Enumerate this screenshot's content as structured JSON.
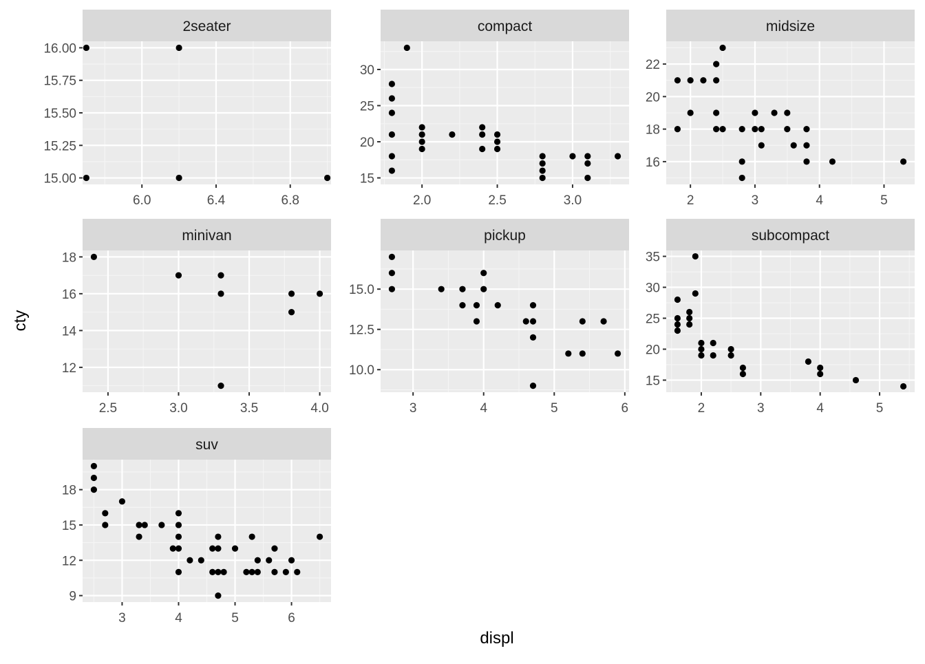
{
  "chart_data": {
    "type": "scatter",
    "facet_by": "class",
    "xlabel": "displ",
    "ylabel": "cty",
    "scales": "free",
    "grid": true,
    "colors": {
      "panel_bg": "#EBEBEB",
      "strip_bg": "#D9D9D9",
      "grid_major": "#FFFFFF",
      "grid_minor": "#F5F5F5",
      "point": "#000000",
      "tick_text": "#4D4D4D",
      "strip_text": "#1A1A1A"
    },
    "panels": [
      {
        "title": "2seater",
        "xlim": [
          5.68,
          7.02
        ],
        "ylim": [
          14.95,
          16.05
        ],
        "xticks": [
          6.0,
          6.4,
          6.8
        ],
        "xtick_labels": [
          "6.0",
          "6.4",
          "6.8"
        ],
        "yticks": [
          15.0,
          15.25,
          15.5,
          15.75,
          16.0
        ],
        "ytick_labels": [
          "15.00",
          "15.25",
          "15.50",
          "15.75",
          "16.00"
        ],
        "points": [
          [
            5.7,
            16
          ],
          [
            5.7,
            15
          ],
          [
            6.2,
            16
          ],
          [
            6.2,
            15
          ],
          [
            7.0,
            15
          ]
        ]
      },
      {
        "title": "compact",
        "xlim": [
          1.725,
          3.375
        ],
        "ylim": [
          14.1,
          33.9
        ],
        "xticks": [
          2.0,
          2.5,
          3.0
        ],
        "xtick_labels": [
          "2.0",
          "2.5",
          "3.0"
        ],
        "yticks": [
          15,
          20,
          25,
          30
        ],
        "ytick_labels": [
          "15",
          "20",
          "25",
          "30"
        ],
        "points": [
          [
            1.8,
            16
          ],
          [
            1.8,
            18
          ],
          [
            1.8,
            21
          ],
          [
            1.8,
            24
          ],
          [
            1.8,
            26
          ],
          [
            1.8,
            28
          ],
          [
            1.9,
            33
          ],
          [
            2.0,
            19
          ],
          [
            2.0,
            20
          ],
          [
            2.0,
            21
          ],
          [
            2.0,
            22
          ],
          [
            2.2,
            21
          ],
          [
            2.4,
            19
          ],
          [
            2.4,
            21
          ],
          [
            2.4,
            22
          ],
          [
            2.5,
            19
          ],
          [
            2.5,
            20
          ],
          [
            2.5,
            21
          ],
          [
            2.8,
            15
          ],
          [
            2.8,
            16
          ],
          [
            2.8,
            17
          ],
          [
            2.8,
            18
          ],
          [
            3.0,
            18
          ],
          [
            3.1,
            15
          ],
          [
            3.1,
            17
          ],
          [
            3.1,
            18
          ],
          [
            3.3,
            18
          ]
        ]
      },
      {
        "title": "midsize",
        "xlim": [
          1.625,
          5.475
        ],
        "ylim": [
          14.6,
          23.4
        ],
        "xticks": [
          2,
          3,
          4,
          5
        ],
        "xtick_labels": [
          "2",
          "3",
          "4",
          "5"
        ],
        "yticks": [
          16,
          18,
          20,
          22
        ],
        "ytick_labels": [
          "16",
          "18",
          "20",
          "22"
        ],
        "points": [
          [
            1.8,
            18
          ],
          [
            1.8,
            21
          ],
          [
            2.0,
            19
          ],
          [
            2.0,
            21
          ],
          [
            2.2,
            21
          ],
          [
            2.4,
            18
          ],
          [
            2.4,
            19
          ],
          [
            2.4,
            21
          ],
          [
            2.4,
            22
          ],
          [
            2.5,
            18
          ],
          [
            2.5,
            23
          ],
          [
            2.8,
            15
          ],
          [
            2.8,
            16
          ],
          [
            2.8,
            18
          ],
          [
            3.0,
            18
          ],
          [
            3.0,
            19
          ],
          [
            3.1,
            17
          ],
          [
            3.1,
            18
          ],
          [
            3.3,
            19
          ],
          [
            3.5,
            18
          ],
          [
            3.5,
            19
          ],
          [
            3.6,
            17
          ],
          [
            3.8,
            16
          ],
          [
            3.8,
            17
          ],
          [
            3.8,
            18
          ],
          [
            4.2,
            16
          ],
          [
            5.3,
            16
          ]
        ]
      },
      {
        "title": "minivan",
        "xlim": [
          2.32,
          4.08
        ],
        "ylim": [
          10.65,
          18.35
        ],
        "xticks": [
          2.5,
          3.0,
          3.5,
          4.0
        ],
        "xtick_labels": [
          "2.5",
          "3.0",
          "3.5",
          "4.0"
        ],
        "yticks": [
          12,
          14,
          16,
          18
        ],
        "ytick_labels": [
          "12",
          "14",
          "16",
          "18"
        ],
        "points": [
          [
            2.4,
            18
          ],
          [
            3.0,
            17
          ],
          [
            3.3,
            11
          ],
          [
            3.3,
            16
          ],
          [
            3.3,
            17
          ],
          [
            3.8,
            15
          ],
          [
            3.8,
            16
          ],
          [
            4.0,
            16
          ]
        ]
      },
      {
        "title": "pickup",
        "xlim": [
          2.54,
          6.06
        ],
        "ylim": [
          8.6,
          17.4
        ],
        "xticks": [
          3,
          4,
          5,
          6
        ],
        "xtick_labels": [
          "3",
          "4",
          "5",
          "6"
        ],
        "yticks": [
          10.0,
          12.5,
          15.0
        ],
        "ytick_labels": [
          "10.0",
          "12.5",
          "15.0"
        ],
        "points": [
          [
            2.7,
            15
          ],
          [
            2.7,
            16
          ],
          [
            2.7,
            17
          ],
          [
            3.4,
            15
          ],
          [
            3.7,
            14
          ],
          [
            3.7,
            15
          ],
          [
            3.9,
            13
          ],
          [
            3.9,
            14
          ],
          [
            4.0,
            15
          ],
          [
            4.0,
            16
          ],
          [
            4.2,
            14
          ],
          [
            4.6,
            13
          ],
          [
            4.7,
            9
          ],
          [
            4.7,
            12
          ],
          [
            4.7,
            13
          ],
          [
            4.7,
            14
          ],
          [
            5.2,
            11
          ],
          [
            5.4,
            11
          ],
          [
            5.4,
            13
          ],
          [
            5.7,
            13
          ],
          [
            5.9,
            11
          ]
        ]
      },
      {
        "title": "subcompact",
        "xlim": [
          1.41,
          5.59
        ],
        "ylim": [
          13.05,
          35.95
        ],
        "xticks": [
          2,
          3,
          4,
          5
        ],
        "xtick_labels": [
          "2",
          "3",
          "4",
          "5"
        ],
        "yticks": [
          15,
          20,
          25,
          30,
          35
        ],
        "ytick_labels": [
          "15",
          "20",
          "25",
          "30",
          "35"
        ],
        "points": [
          [
            1.6,
            23
          ],
          [
            1.6,
            24
          ],
          [
            1.6,
            25
          ],
          [
            1.6,
            28
          ],
          [
            1.8,
            24
          ],
          [
            1.8,
            25
          ],
          [
            1.8,
            26
          ],
          [
            1.9,
            29
          ],
          [
            1.9,
            35
          ],
          [
            2.0,
            19
          ],
          [
            2.0,
            20
          ],
          [
            2.0,
            21
          ],
          [
            2.2,
            19
          ],
          [
            2.2,
            21
          ],
          [
            2.5,
            19
          ],
          [
            2.5,
            20
          ],
          [
            2.7,
            16
          ],
          [
            2.7,
            17
          ],
          [
            3.8,
            18
          ],
          [
            4.0,
            16
          ],
          [
            4.0,
            17
          ],
          [
            4.6,
            15
          ],
          [
            5.4,
            14
          ]
        ]
      },
      {
        "title": "suv",
        "xlim": [
          2.3,
          6.7
        ],
        "ylim": [
          8.45,
          20.55
        ],
        "xticks": [
          3,
          4,
          5,
          6
        ],
        "xtick_labels": [
          "3",
          "4",
          "5",
          "6"
        ],
        "yticks": [
          9,
          12,
          15,
          18
        ],
        "ytick_labels": [
          "9",
          "12",
          "15",
          "18"
        ],
        "points": [
          [
            2.5,
            18
          ],
          [
            2.5,
            19
          ],
          [
            2.5,
            20
          ],
          [
            2.7,
            15
          ],
          [
            2.7,
            16
          ],
          [
            3.0,
            17
          ],
          [
            3.3,
            14
          ],
          [
            3.3,
            15
          ],
          [
            3.4,
            15
          ],
          [
            3.7,
            15
          ],
          [
            3.9,
            13
          ],
          [
            4.0,
            11
          ],
          [
            4.0,
            13
          ],
          [
            4.0,
            14
          ],
          [
            4.0,
            15
          ],
          [
            4.0,
            16
          ],
          [
            4.2,
            12
          ],
          [
            4.4,
            12
          ],
          [
            4.6,
            11
          ],
          [
            4.6,
            13
          ],
          [
            4.7,
            9
          ],
          [
            4.7,
            11
          ],
          [
            4.7,
            13
          ],
          [
            4.7,
            14
          ],
          [
            4.8,
            11
          ],
          [
            5.0,
            13
          ],
          [
            5.2,
            11
          ],
          [
            5.3,
            11
          ],
          [
            5.3,
            14
          ],
          [
            5.4,
            11
          ],
          [
            5.4,
            12
          ],
          [
            5.6,
            12
          ],
          [
            5.7,
            11
          ],
          [
            5.7,
            13
          ],
          [
            5.9,
            11
          ],
          [
            6.0,
            12
          ],
          [
            6.1,
            11
          ],
          [
            6.5,
            14
          ]
        ]
      }
    ]
  }
}
